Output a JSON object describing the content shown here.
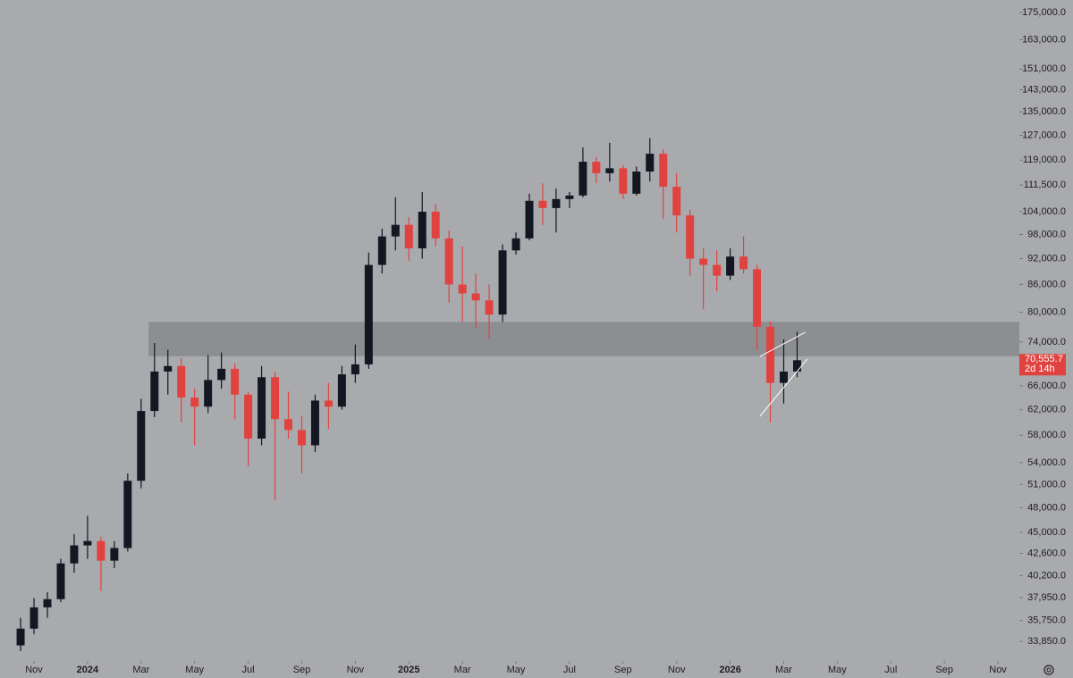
{
  "chart_data": {
    "type": "candlestick",
    "log_scale": true,
    "up_color": "#131722",
    "down_color": "#e0433f",
    "x": [
      -0.5,
      0,
      0.5,
      1,
      1.5,
      2,
      2.5,
      3,
      3.5,
      4,
      4.5,
      5,
      5.5,
      6,
      6.5,
      7,
      7.5,
      8,
      8.5,
      9,
      9.5,
      10,
      10.5,
      11,
      11.5,
      12,
      12.5,
      13,
      13.5,
      14,
      14.5,
      15,
      15.5,
      16,
      16.5,
      17,
      17.5,
      18,
      18.5,
      19,
      19.5,
      20,
      20.5,
      21,
      21.5,
      22,
      22.5,
      23,
      23.5,
      24,
      24.5,
      25,
      25.5,
      26,
      26.5,
      27,
      27.5,
      28,
      28.5
    ],
    "open": [
      33500,
      35000,
      37000,
      37800,
      41500,
      43500,
      44000,
      41800,
      43200,
      51500,
      61800,
      68500,
      69500,
      64000,
      62500,
      67000,
      69000,
      64500,
      57500,
      67500,
      60500,
      58800,
      56500,
      63500,
      62500,
      68000,
      69800,
      90500,
      97500,
      100500,
      94500,
      104000,
      97000,
      86000,
      84000,
      82500,
      79500,
      94000,
      97000,
      107000,
      105000,
      107500,
      108500,
      118500,
      115000,
      116500,
      109000,
      115500,
      121000,
      111000,
      103000,
      92000,
      90500,
      88000,
      92500,
      89500,
      77000,
      66500,
      68500
    ],
    "high": [
      36000,
      37900,
      38500,
      42000,
      44800,
      47000,
      44500,
      44000,
      52500,
      63800,
      73800,
      72500,
      71000,
      65500,
      71500,
      72000,
      70000,
      65000,
      69500,
      68500,
      65000,
      61000,
      64500,
      66500,
      69500,
      73500,
      93500,
      99500,
      108000,
      102500,
      109500,
      106000,
      99000,
      95000,
      88500,
      86000,
      95500,
      98500,
      109000,
      112000,
      110500,
      109500,
      123000,
      120000,
      124500,
      117500,
      117000,
      126000,
      122500,
      115000,
      104500,
      94500,
      94000,
      94500,
      97500,
      90500,
      78000,
      74500,
      76000
    ],
    "low": [
      33000,
      34500,
      36000,
      37500,
      40500,
      42000,
      38600,
      41000,
      42800,
      50500,
      60800,
      64500,
      60000,
      56500,
      61500,
      65500,
      60500,
      53500,
      56500,
      49000,
      57500,
      52500,
      55500,
      59000,
      62000,
      66500,
      69000,
      88500,
      94000,
      91500,
      92000,
      95000,
      82000,
      78000,
      76800,
      74600,
      78000,
      93000,
      96500,
      100500,
      98500,
      105000,
      108000,
      112000,
      112500,
      107500,
      108500,
      112500,
      102000,
      98500,
      88000,
      80600,
      84500,
      87000,
      88500,
      72500,
      60000,
      63000,
      67500
    ],
    "close": [
      35000,
      37000,
      37800,
      41500,
      43500,
      44000,
      41800,
      43200,
      51500,
      61800,
      68500,
      69500,
      64000,
      62500,
      67000,
      69000,
      64500,
      57500,
      67500,
      60500,
      58800,
      56500,
      63500,
      62500,
      68000,
      69800,
      90500,
      97500,
      100500,
      94500,
      104000,
      97000,
      86000,
      84000,
      82500,
      79500,
      94000,
      97000,
      107000,
      105000,
      107500,
      108500,
      118500,
      115000,
      116500,
      109000,
      115500,
      121000,
      111000,
      103000,
      92000,
      90500,
      88000,
      92500,
      89500,
      77000,
      66500,
      68500,
      70555.7
    ],
    "xlim": [
      -1.27,
      36.8
    ],
    "xticks": [
      {
        "value": 0,
        "label": "Nov"
      },
      {
        "value": 2,
        "label": "2024"
      },
      {
        "value": 4,
        "label": "Mar"
      },
      {
        "value": 6,
        "label": "May"
      },
      {
        "value": 8,
        "label": "Jul"
      },
      {
        "value": 10,
        "label": "Sep"
      },
      {
        "value": 12,
        "label": "Nov"
      },
      {
        "value": 14,
        "label": "2025"
      },
      {
        "value": 16,
        "label": "Mar"
      },
      {
        "value": 18,
        "label": "May"
      },
      {
        "value": 20,
        "label": "Jul"
      },
      {
        "value": 22,
        "label": "Sep"
      },
      {
        "value": 24,
        "label": "Nov"
      },
      {
        "value": 26,
        "label": "2026"
      },
      {
        "value": 28,
        "label": "Mar"
      },
      {
        "value": 30,
        "label": "May"
      },
      {
        "value": 32,
        "label": "Jul"
      },
      {
        "value": 34,
        "label": "Sep"
      },
      {
        "value": 36,
        "label": "Nov"
      }
    ],
    "ylim": [
      32160,
      180800
    ],
    "yticks": [
      {
        "value": 175000,
        "label": "175,000.0"
      },
      {
        "value": 163000,
        "label": "163,000.0"
      },
      {
        "value": 151000,
        "label": "151,000.0"
      },
      {
        "value": 143000,
        "label": "143,000.0"
      },
      {
        "value": 135000,
        "label": "135,000.0"
      },
      {
        "value": 127000,
        "label": "127,000.0"
      },
      {
        "value": 119000,
        "label": "119,000.0"
      },
      {
        "value": 111500,
        "label": "111,500.0"
      },
      {
        "value": 104000,
        "label": "104,000.0"
      },
      {
        "value": 98000,
        "label": "98,000.0"
      },
      {
        "value": 92000,
        "label": "92,000.0"
      },
      {
        "value": 86000,
        "label": "86,000.0"
      },
      {
        "value": 80000,
        "label": "80,000.0"
      },
      {
        "value": 74000,
        "label": "74,000.0"
      },
      {
        "value": 66000,
        "label": "66,000.0"
      },
      {
        "value": 62000,
        "label": "62,000.0"
      },
      {
        "value": 58000,
        "label": "58,000.0"
      },
      {
        "value": 54000,
        "label": "54,000.0"
      },
      {
        "value": 51000,
        "label": "51,000.0"
      },
      {
        "value": 48000,
        "label": "48,000.0"
      },
      {
        "value": 45000,
        "label": "45,000.0"
      },
      {
        "value": 42600,
        "label": "42,600.0"
      },
      {
        "value": 40200,
        "label": "40,200.0"
      },
      {
        "value": 37950,
        "label": "37,950.0"
      },
      {
        "value": 35750,
        "label": "35,750.0"
      },
      {
        "value": 33850,
        "label": "33,850.0"
      }
    ],
    "zone": {
      "x0": 4.28,
      "top": 78000,
      "bottom": 71300
    },
    "trendlines": [
      {
        "x": [
          27.11,
          28.81
        ],
        "y": [
          71260,
          75900
        ]
      },
      {
        "x": [
          27.11,
          28.88
        ],
        "y": [
          60950,
          70770
        ]
      }
    ],
    "last_price": {
      "value": 70555.7,
      "label": "70,555.7"
    },
    "countdown": "2d 14h"
  }
}
